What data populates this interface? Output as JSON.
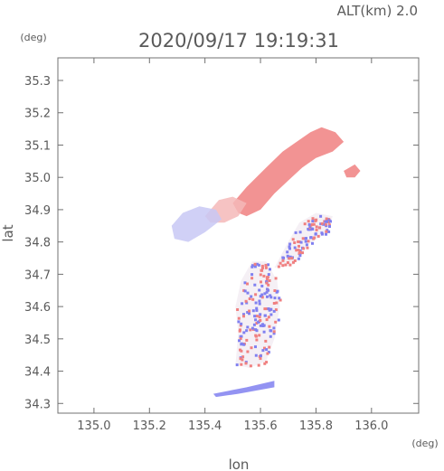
{
  "chart_data": {
    "type": "heatmap",
    "title": "2020/09/17 19:19:31",
    "subtitle": "ALT(km) 2.0",
    "xlabel": "lon",
    "ylabel": "lat",
    "x_unit": "(deg)",
    "y_unit": "(deg)",
    "xlim": [
      134.87,
      136.17
    ],
    "ylim": [
      34.27,
      35.37
    ],
    "x_ticks": [
      "135.0",
      "135.2",
      "135.4",
      "135.6",
      "135.8",
      "136.0"
    ],
    "y_ticks": [
      "34.3",
      "34.4",
      "34.5",
      "34.6",
      "34.7",
      "34.8",
      "34.9",
      "35.0",
      "35.1",
      "35.2",
      "35.3"
    ],
    "grid": false,
    "colors": {
      "positive": "#f08080",
      "negative": "#8080f0",
      "light_positive": "#f5b8b8",
      "light_negative": "#c8c8f5"
    },
    "regions": [
      {
        "name": "northeast band",
        "sign": "positive",
        "polygon": [
          [
            135.5,
            34.92
          ],
          [
            135.55,
            34.97
          ],
          [
            135.62,
            35.03
          ],
          [
            135.68,
            35.08
          ],
          [
            135.73,
            35.11
          ],
          [
            135.78,
            35.14
          ],
          [
            135.82,
            35.155
          ],
          [
            135.87,
            35.14
          ],
          [
            135.9,
            35.11
          ],
          [
            135.86,
            35.08
          ],
          [
            135.8,
            35.06
          ],
          [
            135.75,
            35.03
          ],
          [
            135.7,
            34.99
          ],
          [
            135.65,
            34.95
          ],
          [
            135.6,
            34.9
          ],
          [
            135.55,
            34.88
          ],
          [
            135.52,
            34.89
          ]
        ]
      },
      {
        "name": "northeast tail",
        "sign": "positive",
        "polygon": [
          [
            135.9,
            35.02
          ],
          [
            135.94,
            35.04
          ],
          [
            135.96,
            35.02
          ],
          [
            135.94,
            35.0
          ],
          [
            135.91,
            35.0
          ]
        ]
      },
      {
        "name": "middle band",
        "sign": "light_positive",
        "polygon": [
          [
            135.4,
            34.88
          ],
          [
            135.45,
            34.93
          ],
          [
            135.5,
            34.94
          ],
          [
            135.55,
            34.92
          ],
          [
            135.52,
            34.88
          ],
          [
            135.47,
            34.86
          ],
          [
            135.42,
            34.86
          ]
        ]
      },
      {
        "name": "western cluster",
        "sign": "light_negative",
        "polygon": [
          [
            135.28,
            34.85
          ],
          [
            135.32,
            34.89
          ],
          [
            135.38,
            34.91
          ],
          [
            135.44,
            34.9
          ],
          [
            135.46,
            34.87
          ],
          [
            135.4,
            34.83
          ],
          [
            135.34,
            34.8
          ],
          [
            135.29,
            34.81
          ]
        ]
      },
      {
        "name": "eastern patch",
        "sign": "mixed",
        "polygon": [
          [
            135.65,
            34.72
          ],
          [
            135.7,
            34.8
          ],
          [
            135.74,
            34.86
          ],
          [
            135.8,
            34.89
          ],
          [
            135.86,
            34.88
          ],
          [
            135.84,
            34.83
          ],
          [
            135.77,
            34.79
          ],
          [
            135.72,
            34.73
          ]
        ]
      },
      {
        "name": "southern column",
        "sign": "mixed",
        "polygon": [
          [
            135.51,
            34.42
          ],
          [
            135.52,
            34.52
          ],
          [
            135.51,
            34.6
          ],
          [
            135.53,
            34.68
          ],
          [
            135.57,
            34.74
          ],
          [
            135.62,
            34.74
          ],
          [
            135.66,
            34.68
          ],
          [
            135.67,
            34.6
          ],
          [
            135.65,
            34.5
          ],
          [
            135.62,
            34.43
          ],
          [
            135.56,
            34.41
          ]
        ]
      },
      {
        "name": "southern tail",
        "sign": "negative",
        "polygon": [
          [
            135.43,
            34.33
          ],
          [
            135.55,
            34.35
          ],
          [
            135.65,
            34.37
          ],
          [
            135.65,
            34.35
          ],
          [
            135.52,
            34.33
          ],
          [
            135.44,
            34.32
          ]
        ]
      }
    ]
  }
}
